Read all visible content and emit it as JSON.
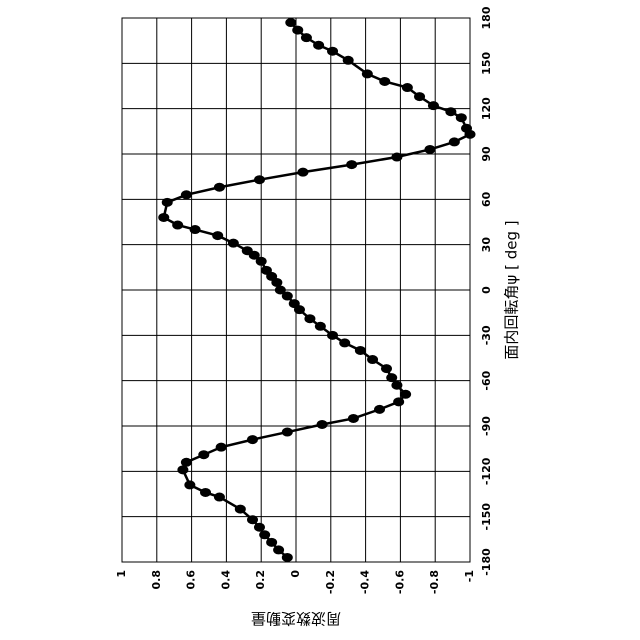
{
  "chart_data": {
    "type": "line",
    "x_label": "面内回転角ψ [ deg ]",
    "y_label": "周波数変動量",
    "x": [
      -177,
      -172,
      -167,
      -162,
      -157,
      -152,
      -145,
      -137,
      -134,
      -129,
      -119,
      -114,
      -109,
      -104,
      -99,
      -94,
      -89,
      -85,
      -79,
      -74,
      -69,
      -63,
      -58,
      -52,
      -46,
      -40,
      -35,
      -30,
      -24,
      -19,
      -13,
      -9,
      -4,
      0,
      5,
      9,
      13,
      19,
      23,
      26,
      31,
      36,
      40,
      43,
      48,
      58,
      63,
      68,
      73,
      78,
      83,
      88,
      93,
      98,
      103,
      107,
      114,
      118,
      122,
      128,
      134,
      138,
      143,
      152,
      158,
      162,
      167,
      172,
      177
    ],
    "values": [
      0.05,
      0.1,
      0.14,
      0.18,
      0.21,
      0.25,
      0.32,
      0.44,
      0.52,
      0.61,
      0.65,
      0.63,
      0.53,
      0.43,
      0.25,
      0.05,
      -0.15,
      -0.33,
      -0.48,
      -0.59,
      -0.63,
      -0.58,
      -0.55,
      -0.52,
      -0.44,
      -0.37,
      -0.28,
      -0.21,
      -0.14,
      -0.08,
      -0.02,
      0.01,
      0.05,
      0.09,
      0.11,
      0.14,
      0.17,
      0.2,
      0.24,
      0.28,
      0.36,
      0.45,
      0.58,
      0.68,
      0.76,
      0.74,
      0.63,
      0.44,
      0.21,
      -0.04,
      -0.32,
      -0.58,
      -0.77,
      -0.91,
      -1.0,
      -0.98,
      -0.95,
      -0.89,
      -0.79,
      -0.71,
      -0.64,
      -0.51,
      -0.41,
      -0.3,
      -0.21,
      -0.13,
      -0.06,
      -0.01,
      0.03
    ],
    "color": "#000000",
    "xlim": [
      -180,
      180
    ],
    "xticks": [
      -180,
      -150,
      -120,
      -90,
      -60,
      -30,
      0,
      30,
      60,
      90,
      120,
      150,
      180
    ],
    "ylim": [
      -1,
      1
    ],
    "yticks": [
      -1,
      -0.8,
      -0.6,
      -0.4,
      -0.2,
      0,
      0.2,
      0.4,
      0.6,
      0.8,
      1
    ],
    "grid": true
  }
}
